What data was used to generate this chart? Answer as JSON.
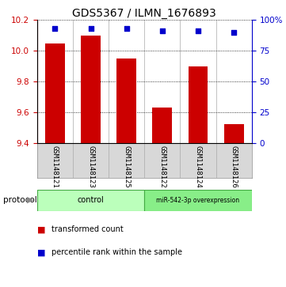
{
  "title": "GDS5367 / ILMN_1676893",
  "samples": [
    "GSM1148121",
    "GSM1148123",
    "GSM1148125",
    "GSM1148122",
    "GSM1148124",
    "GSM1148126"
  ],
  "bar_values": [
    10.05,
    10.1,
    9.95,
    9.63,
    9.9,
    9.52
  ],
  "percentile_values": [
    93,
    93,
    93,
    91,
    91,
    90
  ],
  "ylim_left": [
    9.4,
    10.2
  ],
  "ylim_right": [
    0,
    100
  ],
  "yticks_left": [
    9.4,
    9.6,
    9.8,
    10.0,
    10.2
  ],
  "yticks_right": [
    0,
    25,
    50,
    75,
    100
  ],
  "bar_color": "#cc0000",
  "dot_color": "#0000cc",
  "bar_width": 0.55,
  "groups": [
    {
      "label": "control",
      "indices": [
        0,
        1,
        2
      ],
      "color": "#bbffbb"
    },
    {
      "label": "miR-542-3p overexpression",
      "indices": [
        3,
        4,
        5
      ],
      "color": "#88ee88"
    }
  ],
  "protocol_label": "protocol",
  "legend_bar_label": "transformed count",
  "legend_dot_label": "percentile rank within the sample",
  "background_color": "#d8d8d8",
  "title_fontsize": 10,
  "tick_fontsize": 7.5,
  "sample_fontsize": 6.5
}
